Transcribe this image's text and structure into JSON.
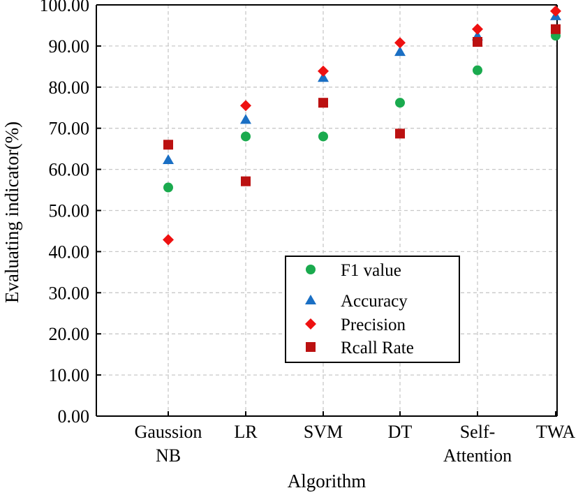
{
  "chart_data": {
    "type": "scatter",
    "title": "",
    "xlabel": "Algorithm",
    "ylabel": "Evaluating indicator(%)",
    "ylim": [
      0,
      100
    ],
    "yticks": [
      "0.00",
      "10.00",
      "20.00",
      "30.00",
      "40.00",
      "50.00",
      "60.00",
      "70.00",
      "80.00",
      "90.00",
      "100.00"
    ],
    "categories": [
      [
        "Gaussion",
        "NB"
      ],
      [
        "LR"
      ],
      [
        "SVM"
      ],
      [
        "DT"
      ],
      [
        "Self-",
        "Attention"
      ],
      [
        "TWA"
      ]
    ],
    "grid": true,
    "legend_position": "lower-center",
    "series": [
      {
        "name": "F1 value",
        "marker": "circle",
        "color": "#1aaa4e",
        "values": [
          55.6,
          68.0,
          68.0,
          76.2,
          84.1,
          92.5
        ]
      },
      {
        "name": "Accuracy",
        "marker": "triangle",
        "color": "#1a6fc4",
        "values": [
          62.3,
          72.1,
          82.3,
          88.6,
          92.4,
          97.3
        ]
      },
      {
        "name": "Precision",
        "marker": "diamond",
        "color": "#ee1111",
        "values": [
          42.9,
          75.5,
          83.9,
          90.8,
          94.1,
          98.5
        ]
      },
      {
        "name": "Rcall Rate",
        "marker": "square",
        "color": "#bb1111",
        "values": [
          66.0,
          57.1,
          76.2,
          68.7,
          91.0,
          94.1
        ]
      }
    ]
  }
}
